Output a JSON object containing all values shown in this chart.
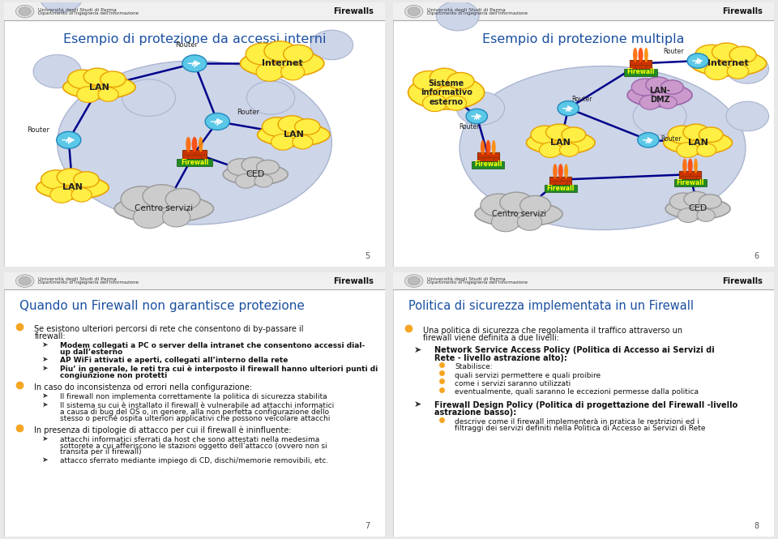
{
  "bg_color": "#e8e8e8",
  "slide_bg": "#ffffff",
  "title_color": "#1a4fa0",
  "bullet_orange": "#f5a623",
  "sub_bullet_orange": "#f5a623",
  "header_bg": "#f0f0f0",
  "header_line": "#aaaaaa",
  "firewall_label_bg": "#228B22",
  "firewall_label_color": "#ffff00",
  "router_color": "#4da6d4",
  "cloud_yellow": "#ffee44",
  "cloud_yellow_border": "#e8a000",
  "cloud_gray": "#cccccc",
  "cloud_gray_border": "#999999",
  "cloud_lavender": "#cc99cc",
  "cloud_lavender_border": "#9966aa",
  "inner_bg": "#d0d8f0",
  "line_color": "#00008B",
  "slide1_title": "Esempio di protezione da accessi interni",
  "slide2_title": "Esempio di protezione multipla",
  "slide3_title": "Quando un Firewall non garantisce protezione",
  "slide4_title": "Politica di sicurezza implementata in un Firewall",
  "left_content": [
    {
      "type": "bullet",
      "text": "Se esistono ulteriori percorsi di rete che consentono di by-passare il\nfirewall:",
      "sub": [
        {
          "bold": true,
          "text": "Modem collegati a PC o server della intranet che consentono accessi dial-\nup dall’esterno"
        },
        {
          "bold": true,
          "text": "AP WiFi attivati e aperti, collegati all’interno della rete"
        },
        {
          "bold": true,
          "text": "Piu’ in generale, le reti tra cui è interposto il firewall hanno ulteriori punti di\ncongiunzione non protetti"
        }
      ]
    },
    {
      "type": "bullet",
      "text": "In caso do inconsistenza od errori nella configurazione:",
      "sub": [
        {
          "bold": false,
          "text": "Il firewall non implementa correttamente la politica di sicurezza stabilita"
        },
        {
          "bold": false,
          "text": "Il sistema su cui è installato il firewall è vulnerabile ad attacchi informatici\na causa di bug del OS o, in genere, alla non perfetta configurazione dello\nstesso o perché ospita ulteriori applicativi che possono veicolare attacchi"
        }
      ]
    },
    {
      "type": "bullet",
      "text": "In presenza di tipologie di attacco per cui il firewall è ininfluente:",
      "sub": [
        {
          "bold": false,
          "text": "attacchi informatici sferrati da host che sono attestati nella medesima\nsottorete a cui afferiscono le stazioni oggetto dell’attacco (ovvero non si\ntransita per il firewall)"
        },
        {
          "bold": false,
          "text": "attacco sferrato mediante impiego di CD, dischi/memorie removibili, etc."
        }
      ]
    }
  ],
  "right_content": [
    {
      "type": "bullet",
      "text": "Una politica di sicurezza che regolamenta il traffico attraverso un\nfirewall viene definita a due livelli:",
      "sub": []
    },
    {
      "type": "arrow_bold",
      "text": "Network Service Access Policy (Politica di Accesso ai Servizi di\nRete - livello astrazione alto):",
      "sub": [
        {
          "text": "Stabilisce:"
        },
        {
          "text": "quali servizi permettere e quali proibire"
        },
        {
          "text": "come i servizi saranno utilizzati"
        },
        {
          "text": "eventualmente, quali saranno le eccezioni permesse dalla politica"
        }
      ]
    },
    {
      "type": "arrow_bold",
      "text": "Firewall Design Policy (Politica di progettazione del Firewall -livello\nastrazione basso):",
      "sub": [
        {
          "text": "descrive come il firewall implementerà in pratica le restrizioni ed i\nfiltraggi dei servizi definiti nella Politica di Accesso ai Servizi di Rete"
        }
      ]
    }
  ],
  "page_numbers": [
    "5",
    "6",
    "7",
    "8"
  ]
}
